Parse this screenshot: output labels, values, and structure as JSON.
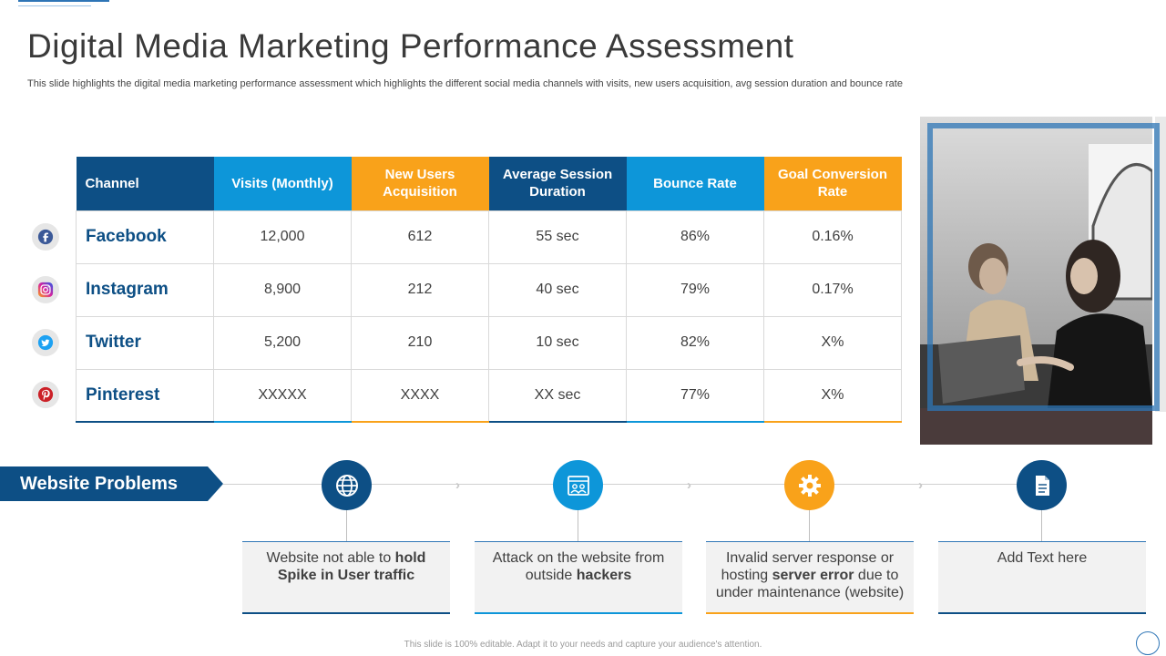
{
  "slide": {
    "title": "Digital Media Marketing Performance Assessment",
    "subtitle": "This slide highlights the digital media marketing performance assessment which highlights the different social media channels with visits, new users acquisition, avg session duration and bounce rate"
  },
  "table": {
    "headers": {
      "channel": "Channel",
      "visits": "Visits (Monthly)",
      "new_users": "New Users Acquisition",
      "avg_session": "Average Session Duration",
      "bounce": "Bounce Rate",
      "goal": "Goal Conversion Rate"
    },
    "rows": [
      {
        "channel": "Facebook",
        "icon": "facebook-icon",
        "visits": "12,000",
        "new_users": "612",
        "avg_session": "55 sec",
        "bounce": "86%",
        "goal": "0.16%"
      },
      {
        "channel": "Instagram",
        "icon": "instagram-icon",
        "visits": "8,900",
        "new_users": "212",
        "avg_session": "40 sec",
        "bounce": "79%",
        "goal": "0.17%"
      },
      {
        "channel": "Twitter",
        "icon": "twitter-icon",
        "visits": "5,200",
        "new_users": "210",
        "avg_session": "10 sec",
        "bounce": "82%",
        "goal": "X%"
      },
      {
        "channel": "Pinterest",
        "icon": "pinterest-icon",
        "visits": "XXXXX",
        "new_users": "XXXX",
        "avg_session": "XX sec",
        "bounce": "77%",
        "goal": "X%"
      }
    ]
  },
  "problems": {
    "label": "Website Problems",
    "items": [
      {
        "icon": "globe-icon",
        "pre": "Website not able to ",
        "bold": "hold Spike in User traffic",
        "post": ""
      },
      {
        "icon": "browser-window-icon",
        "pre": "Attack on the website from outside ",
        "bold": "hackers",
        "post": ""
      },
      {
        "icon": "gear-icon",
        "pre": "Invalid server response or hosting ",
        "bold": "server error",
        "post": " due to under maintenance (website)"
      },
      {
        "icon": "document-icon",
        "pre": "Add Text here",
        "bold": "",
        "post": ""
      }
    ]
  },
  "footer": "This slide is 100% editable. Adapt it to your needs and capture your audience's attention.",
  "colors": {
    "dark_blue": "#0d4f85",
    "light_blue": "#0d96d9",
    "orange": "#f9a21a"
  }
}
